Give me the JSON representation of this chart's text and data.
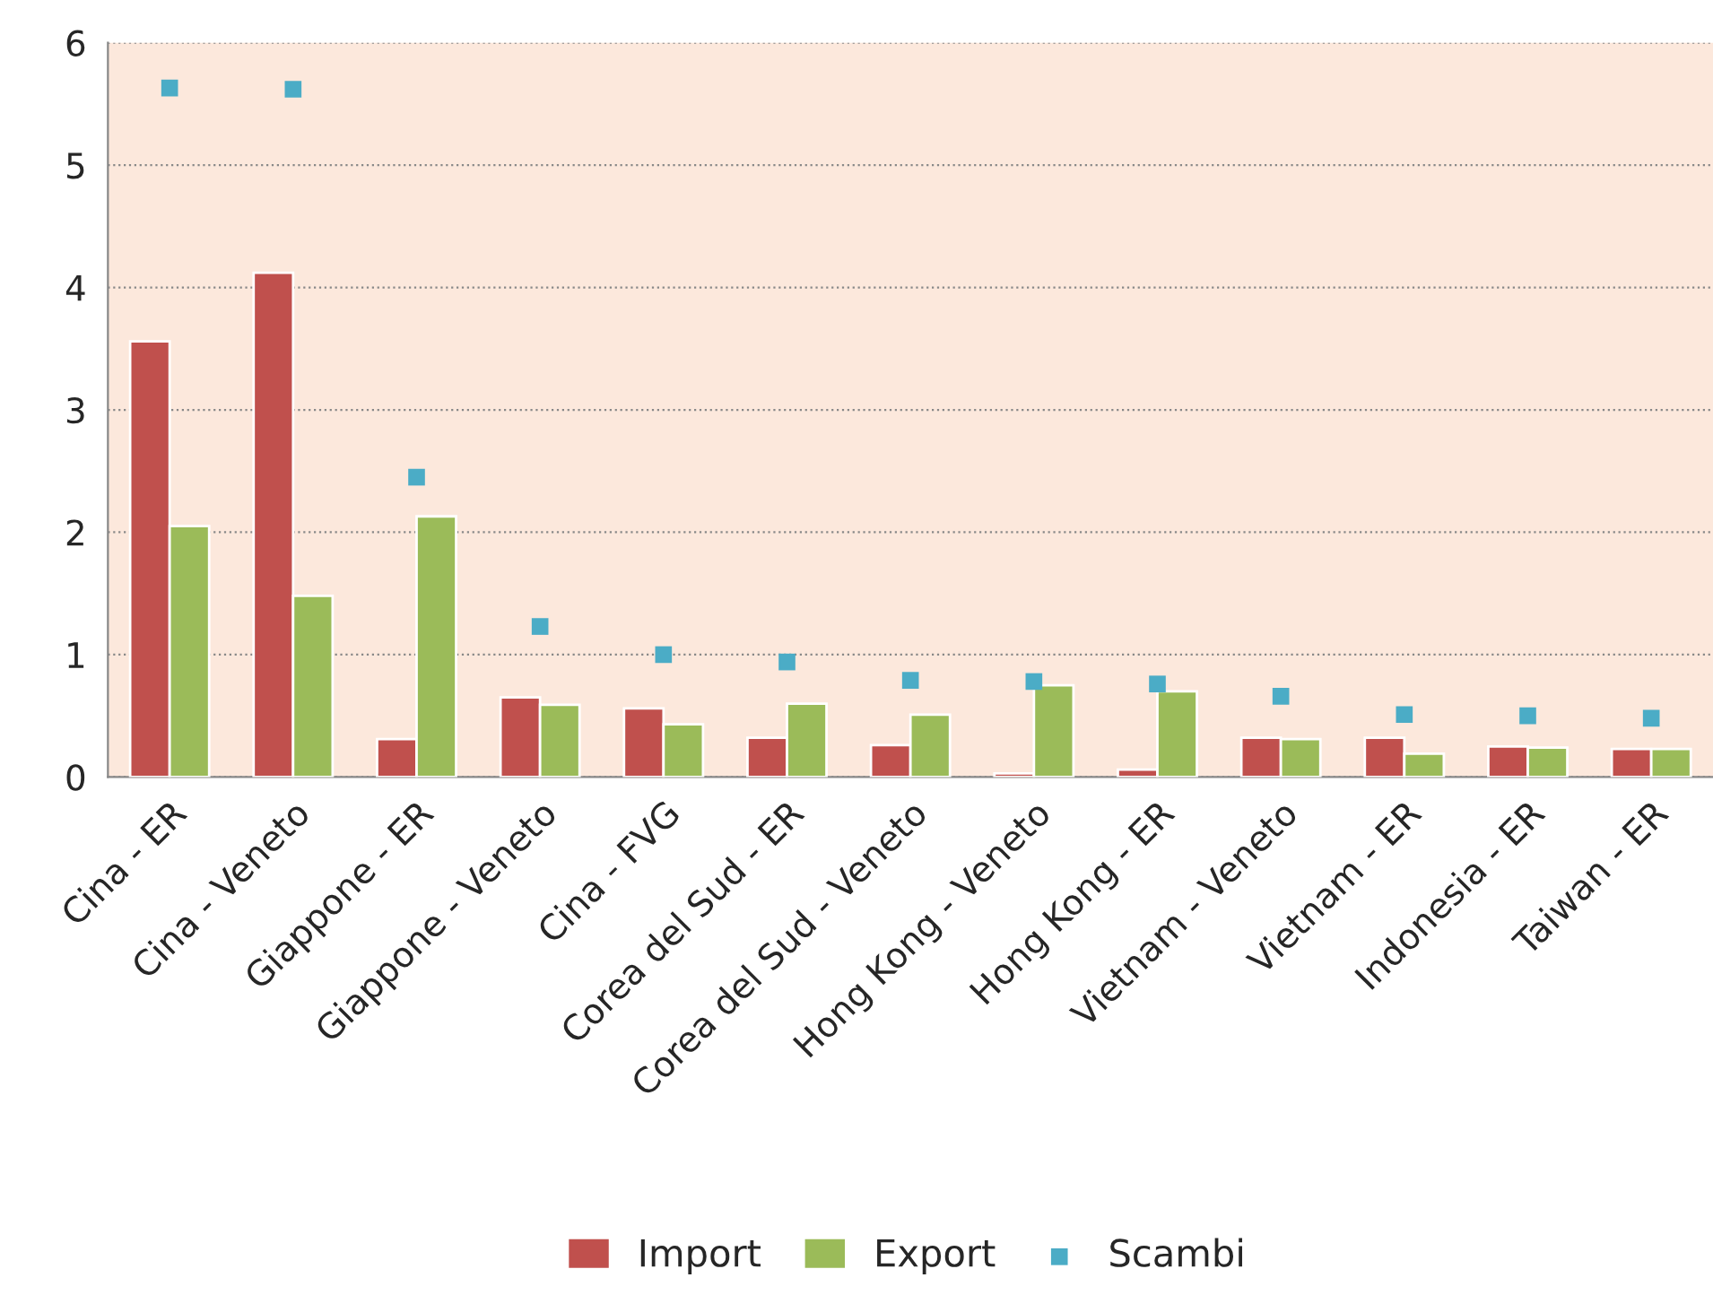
{
  "chart_data": {
    "type": "bar",
    "categories": [
      "Cina - ER",
      "Cina - Veneto",
      "Giappone - ER",
      "Giappone - Veneto",
      "Cina - FVG",
      "Corea del Sud - ER",
      "Corea del Sud - Veneto",
      "Hong Kong - Veneto",
      "Hong Kong - ER",
      "Vietnam - Veneto",
      "Vietnam - ER",
      "Indonesia - ER",
      "Taiwan - ER"
    ],
    "series": [
      {
        "name": "Import",
        "color": "#c0504d",
        "values": [
          3.56,
          4.12,
          0.31,
          0.65,
          0.56,
          0.32,
          0.26,
          0.03,
          0.06,
          0.32,
          0.32,
          0.25,
          0.23
        ]
      },
      {
        "name": "Export",
        "color": "#9bbb59",
        "values": [
          2.05,
          1.48,
          2.13,
          0.59,
          0.43,
          0.6,
          0.51,
          0.75,
          0.7,
          0.31,
          0.19,
          0.24,
          0.23
        ]
      },
      {
        "name": "Scambi",
        "color": "#4bacc6",
        "type": "scatter",
        "values": [
          5.63,
          5.62,
          2.45,
          1.23,
          1.0,
          0.94,
          0.79,
          0.78,
          0.76,
          0.66,
          0.51,
          0.5,
          0.48
        ]
      }
    ],
    "ylim": [
      0,
      6
    ],
    "yticks": [
      0,
      1,
      2,
      3,
      4,
      5,
      6
    ],
    "grid": "y",
    "legend": "bottom"
  }
}
